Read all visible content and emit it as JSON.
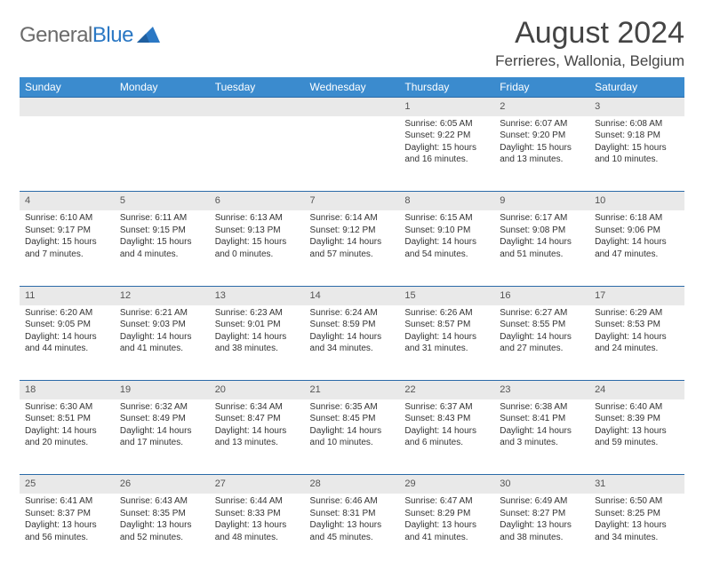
{
  "brand": {
    "general": "General",
    "blue": "Blue"
  },
  "title": "August 2024",
  "location": "Ferrieres, Wallonia, Belgium",
  "colors": {
    "header_bg": "#3b8bce",
    "header_text": "#ffffff",
    "daynum_bg": "#e9e9e9",
    "rule": "#2b6aa8",
    "text": "#333333",
    "logo_gray": "#6b6b6b",
    "logo_blue": "#2b78c4"
  },
  "weekdays": [
    "Sunday",
    "Monday",
    "Tuesday",
    "Wednesday",
    "Thursday",
    "Friday",
    "Saturday"
  ],
  "weeks": [
    [
      null,
      null,
      null,
      null,
      {
        "d": "1",
        "sunrise": "Sunrise: 6:05 AM",
        "sunset": "Sunset: 9:22 PM",
        "daylight": "Daylight: 15 hours and 16 minutes."
      },
      {
        "d": "2",
        "sunrise": "Sunrise: 6:07 AM",
        "sunset": "Sunset: 9:20 PM",
        "daylight": "Daylight: 15 hours and 13 minutes."
      },
      {
        "d": "3",
        "sunrise": "Sunrise: 6:08 AM",
        "sunset": "Sunset: 9:18 PM",
        "daylight": "Daylight: 15 hours and 10 minutes."
      }
    ],
    [
      {
        "d": "4",
        "sunrise": "Sunrise: 6:10 AM",
        "sunset": "Sunset: 9:17 PM",
        "daylight": "Daylight: 15 hours and 7 minutes."
      },
      {
        "d": "5",
        "sunrise": "Sunrise: 6:11 AM",
        "sunset": "Sunset: 9:15 PM",
        "daylight": "Daylight: 15 hours and 4 minutes."
      },
      {
        "d": "6",
        "sunrise": "Sunrise: 6:13 AM",
        "sunset": "Sunset: 9:13 PM",
        "daylight": "Daylight: 15 hours and 0 minutes."
      },
      {
        "d": "7",
        "sunrise": "Sunrise: 6:14 AM",
        "sunset": "Sunset: 9:12 PM",
        "daylight": "Daylight: 14 hours and 57 minutes."
      },
      {
        "d": "8",
        "sunrise": "Sunrise: 6:15 AM",
        "sunset": "Sunset: 9:10 PM",
        "daylight": "Daylight: 14 hours and 54 minutes."
      },
      {
        "d": "9",
        "sunrise": "Sunrise: 6:17 AM",
        "sunset": "Sunset: 9:08 PM",
        "daylight": "Daylight: 14 hours and 51 minutes."
      },
      {
        "d": "10",
        "sunrise": "Sunrise: 6:18 AM",
        "sunset": "Sunset: 9:06 PM",
        "daylight": "Daylight: 14 hours and 47 minutes."
      }
    ],
    [
      {
        "d": "11",
        "sunrise": "Sunrise: 6:20 AM",
        "sunset": "Sunset: 9:05 PM",
        "daylight": "Daylight: 14 hours and 44 minutes."
      },
      {
        "d": "12",
        "sunrise": "Sunrise: 6:21 AM",
        "sunset": "Sunset: 9:03 PM",
        "daylight": "Daylight: 14 hours and 41 minutes."
      },
      {
        "d": "13",
        "sunrise": "Sunrise: 6:23 AM",
        "sunset": "Sunset: 9:01 PM",
        "daylight": "Daylight: 14 hours and 38 minutes."
      },
      {
        "d": "14",
        "sunrise": "Sunrise: 6:24 AM",
        "sunset": "Sunset: 8:59 PM",
        "daylight": "Daylight: 14 hours and 34 minutes."
      },
      {
        "d": "15",
        "sunrise": "Sunrise: 6:26 AM",
        "sunset": "Sunset: 8:57 PM",
        "daylight": "Daylight: 14 hours and 31 minutes."
      },
      {
        "d": "16",
        "sunrise": "Sunrise: 6:27 AM",
        "sunset": "Sunset: 8:55 PM",
        "daylight": "Daylight: 14 hours and 27 minutes."
      },
      {
        "d": "17",
        "sunrise": "Sunrise: 6:29 AM",
        "sunset": "Sunset: 8:53 PM",
        "daylight": "Daylight: 14 hours and 24 minutes."
      }
    ],
    [
      {
        "d": "18",
        "sunrise": "Sunrise: 6:30 AM",
        "sunset": "Sunset: 8:51 PM",
        "daylight": "Daylight: 14 hours and 20 minutes."
      },
      {
        "d": "19",
        "sunrise": "Sunrise: 6:32 AM",
        "sunset": "Sunset: 8:49 PM",
        "daylight": "Daylight: 14 hours and 17 minutes."
      },
      {
        "d": "20",
        "sunrise": "Sunrise: 6:34 AM",
        "sunset": "Sunset: 8:47 PM",
        "daylight": "Daylight: 14 hours and 13 minutes."
      },
      {
        "d": "21",
        "sunrise": "Sunrise: 6:35 AM",
        "sunset": "Sunset: 8:45 PM",
        "daylight": "Daylight: 14 hours and 10 minutes."
      },
      {
        "d": "22",
        "sunrise": "Sunrise: 6:37 AM",
        "sunset": "Sunset: 8:43 PM",
        "daylight": "Daylight: 14 hours and 6 minutes."
      },
      {
        "d": "23",
        "sunrise": "Sunrise: 6:38 AM",
        "sunset": "Sunset: 8:41 PM",
        "daylight": "Daylight: 14 hours and 3 minutes."
      },
      {
        "d": "24",
        "sunrise": "Sunrise: 6:40 AM",
        "sunset": "Sunset: 8:39 PM",
        "daylight": "Daylight: 13 hours and 59 minutes."
      }
    ],
    [
      {
        "d": "25",
        "sunrise": "Sunrise: 6:41 AM",
        "sunset": "Sunset: 8:37 PM",
        "daylight": "Daylight: 13 hours and 56 minutes."
      },
      {
        "d": "26",
        "sunrise": "Sunrise: 6:43 AM",
        "sunset": "Sunset: 8:35 PM",
        "daylight": "Daylight: 13 hours and 52 minutes."
      },
      {
        "d": "27",
        "sunrise": "Sunrise: 6:44 AM",
        "sunset": "Sunset: 8:33 PM",
        "daylight": "Daylight: 13 hours and 48 minutes."
      },
      {
        "d": "28",
        "sunrise": "Sunrise: 6:46 AM",
        "sunset": "Sunset: 8:31 PM",
        "daylight": "Daylight: 13 hours and 45 minutes."
      },
      {
        "d": "29",
        "sunrise": "Sunrise: 6:47 AM",
        "sunset": "Sunset: 8:29 PM",
        "daylight": "Daylight: 13 hours and 41 minutes."
      },
      {
        "d": "30",
        "sunrise": "Sunrise: 6:49 AM",
        "sunset": "Sunset: 8:27 PM",
        "daylight": "Daylight: 13 hours and 38 minutes."
      },
      {
        "d": "31",
        "sunrise": "Sunrise: 6:50 AM",
        "sunset": "Sunset: 8:25 PM",
        "daylight": "Daylight: 13 hours and 34 minutes."
      }
    ]
  ]
}
